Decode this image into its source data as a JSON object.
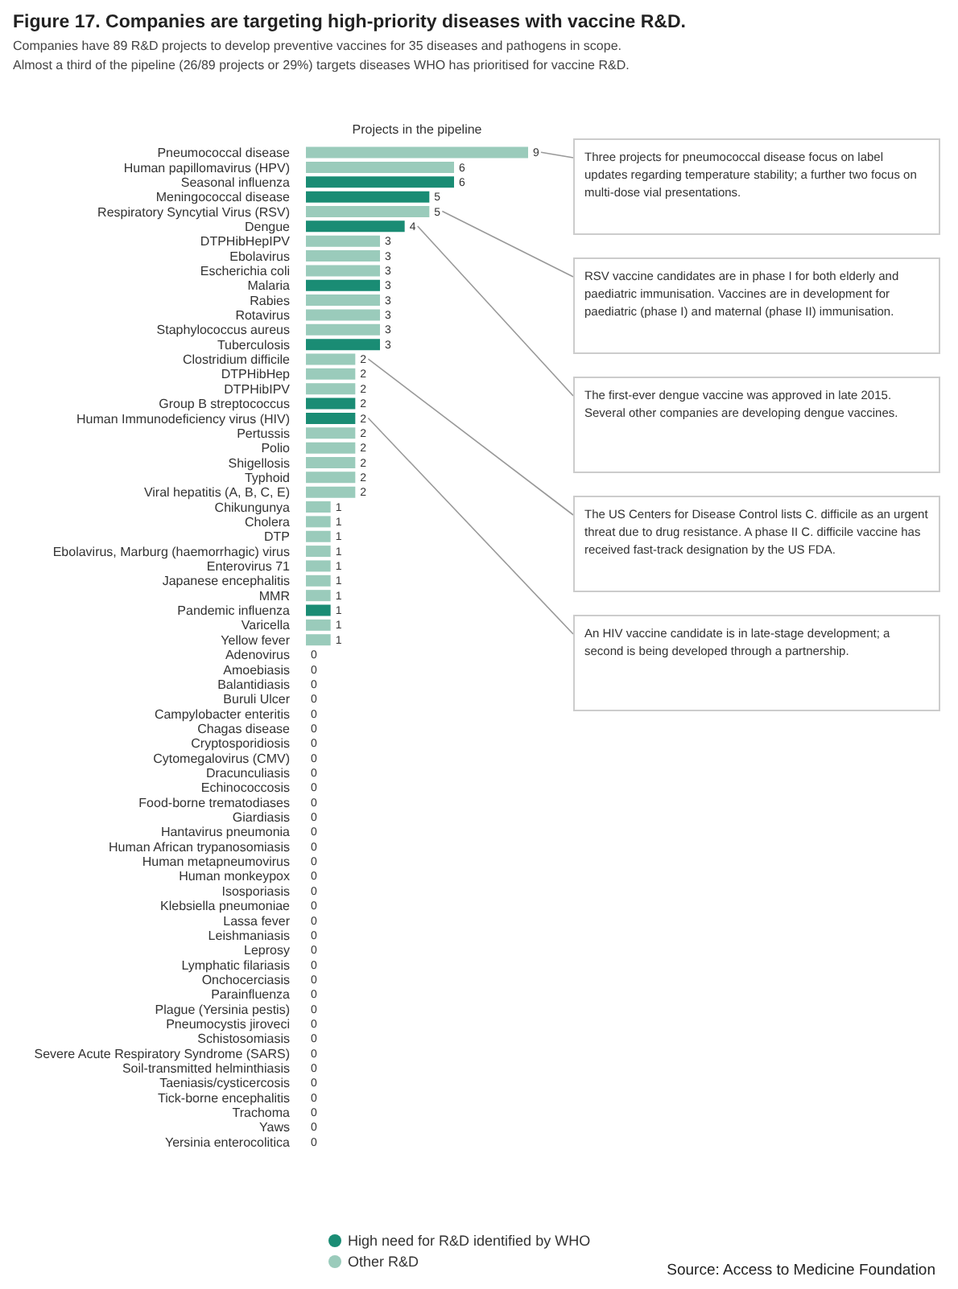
{
  "chart_data": {
    "type": "bar",
    "orientation": "horizontal",
    "stacked": true,
    "title": "Figure 17. Companies are targeting high-priority diseases with vaccine R&D.",
    "subtitle": "Companies have 89 R&D projects to develop preventive vaccines for 35 diseases and pathogens in scope. Almost a third of the pipeline (26/89 projects or 29%) targets diseases WHO has prioritised for vaccine R&D.",
    "xlabel": "Projects in the pipeline",
    "categories": [
      "Pneumococcal disease",
      "Human papillomavirus (HPV)",
      "Seasonal influenza",
      "Meningococcal disease",
      "Respiratory Syncytial Virus (RSV)",
      "Dengue",
      "DTPHibHepIPV",
      "Ebolavirus",
      "Escherichia coli",
      "Malaria",
      "Rabies",
      "Rotavirus",
      "Staphylococcus aureus",
      "Tuberculosis",
      "Clostridium difficile",
      "DTPHibHep",
      "DTPHibIPV",
      "Group B streptococcus",
      "Human Immunodeficiency virus (HIV)",
      "Pertussis",
      "Polio",
      "Shigellosis",
      "Typhoid",
      "Viral hepatitis (A, B, C, E)",
      "Chikungunya",
      "Cholera",
      "DTP",
      "Ebolavirus, Marburg (haemorrhagic) virus",
      "Enterovirus 71",
      "Japanese encephalitis",
      "MMR",
      "Pandemic influenza",
      "Varicella",
      "Yellow fever",
      "Adenovirus",
      "Amoebiasis",
      "Balantidiasis",
      "Buruli Ulcer",
      "Campylobacter enteritis",
      "Chagas disease",
      "Cryptosporidiosis",
      "Cytomegalovirus (CMV)",
      "Dracunculiasis",
      "Echinococcosis",
      "Food-borne trematodiases",
      "Giardiasis",
      "Hantavirus pneumonia",
      "Human African trypanosomiasis",
      "Human metapneumovirus",
      "Human monkeypox",
      "Isosporiasis",
      "Klebsiella pneumoniae",
      "Lassa fever",
      "Leishmaniasis",
      "Leprosy",
      "Lymphatic filariasis",
      "Onchocerciasis",
      "Parainfluenza",
      "Plague (Yersinia pestis)",
      "Pneumocystis jiroveci",
      "Schistosomiasis",
      "Severe Acute Respiratory Syndrome (SARS)",
      "Soil-transmitted helminthiasis",
      "Taeniasis/cysticercosis",
      "Tick-borne encephalitis",
      "Trachoma",
      "Yaws",
      "Yersinia enterocolitica"
    ],
    "series": [
      {
        "name": "High need for R&D identified by WHO",
        "color": "#1a8c74",
        "values": [
          null,
          null,
          6,
          5,
          null,
          4,
          null,
          null,
          null,
          3,
          null,
          null,
          null,
          3,
          null,
          null,
          null,
          2,
          2,
          null,
          null,
          null,
          null,
          null,
          null,
          null,
          null,
          null,
          null,
          null,
          null,
          1,
          null,
          null,
          null,
          null,
          null,
          null,
          null,
          null,
          null,
          null,
          null,
          null,
          null,
          null,
          null,
          null,
          null,
          null,
          null,
          null,
          null,
          null,
          null,
          null,
          null,
          null,
          null,
          null,
          null,
          null,
          null,
          null,
          null,
          null,
          null,
          null
        ]
      },
      {
        "name": "Other R&D",
        "color": "#9acbbb",
        "values": [
          9,
          6,
          null,
          null,
          5,
          null,
          3,
          3,
          3,
          null,
          3,
          3,
          3,
          null,
          2,
          2,
          2,
          null,
          null,
          2,
          2,
          2,
          2,
          2,
          1,
          1,
          1,
          1,
          1,
          1,
          1,
          null,
          1,
          1,
          0,
          0,
          0,
          0,
          0,
          0,
          0,
          0,
          0,
          0,
          0,
          0,
          0,
          0,
          0,
          0,
          0,
          0,
          0,
          0,
          0,
          0,
          0,
          0,
          0,
          0,
          0,
          0,
          0,
          0,
          0,
          0,
          0,
          0
        ]
      }
    ],
    "data_labels": true,
    "legend": "bottom",
    "annotations": [
      {
        "text": "Three projects for pneumococcal disease focus on label updates regarding temperature stability; a further two focus on multi-dose vial presentations.",
        "x": 9,
        "y": "Pneumococcal disease"
      },
      {
        "text": "RSV vaccine candidates are in phase I for both elderly and paediatric immunisation. Vaccines are in development for paediatric (phase I) and maternal (phase II) immunisation.",
        "x": 5,
        "y": "Respiratory Syncytial Virus (RSV)"
      },
      {
        "text": "The first-ever dengue vaccine was approved in late 2015. Several other companies are developing dengue vaccines.",
        "x": 4,
        "y": "Dengue"
      },
      {
        "text": "The US Centers for Disease Control lists C. difficile as an urgent threat due to drug resistance. A phase II C. difficile vaccine has received fast-track designation by the US FDA.",
        "x": 2,
        "y": "Clostridium difficile"
      },
      {
        "text": "An HIV vaccine candidate is in late-stage development; a second is being developed through a partnership.",
        "x": 2,
        "y": "Human Immunodeficiency virus (HIV)"
      },
      "Source: Access to Medicine Foundation"
    ]
  }
}
